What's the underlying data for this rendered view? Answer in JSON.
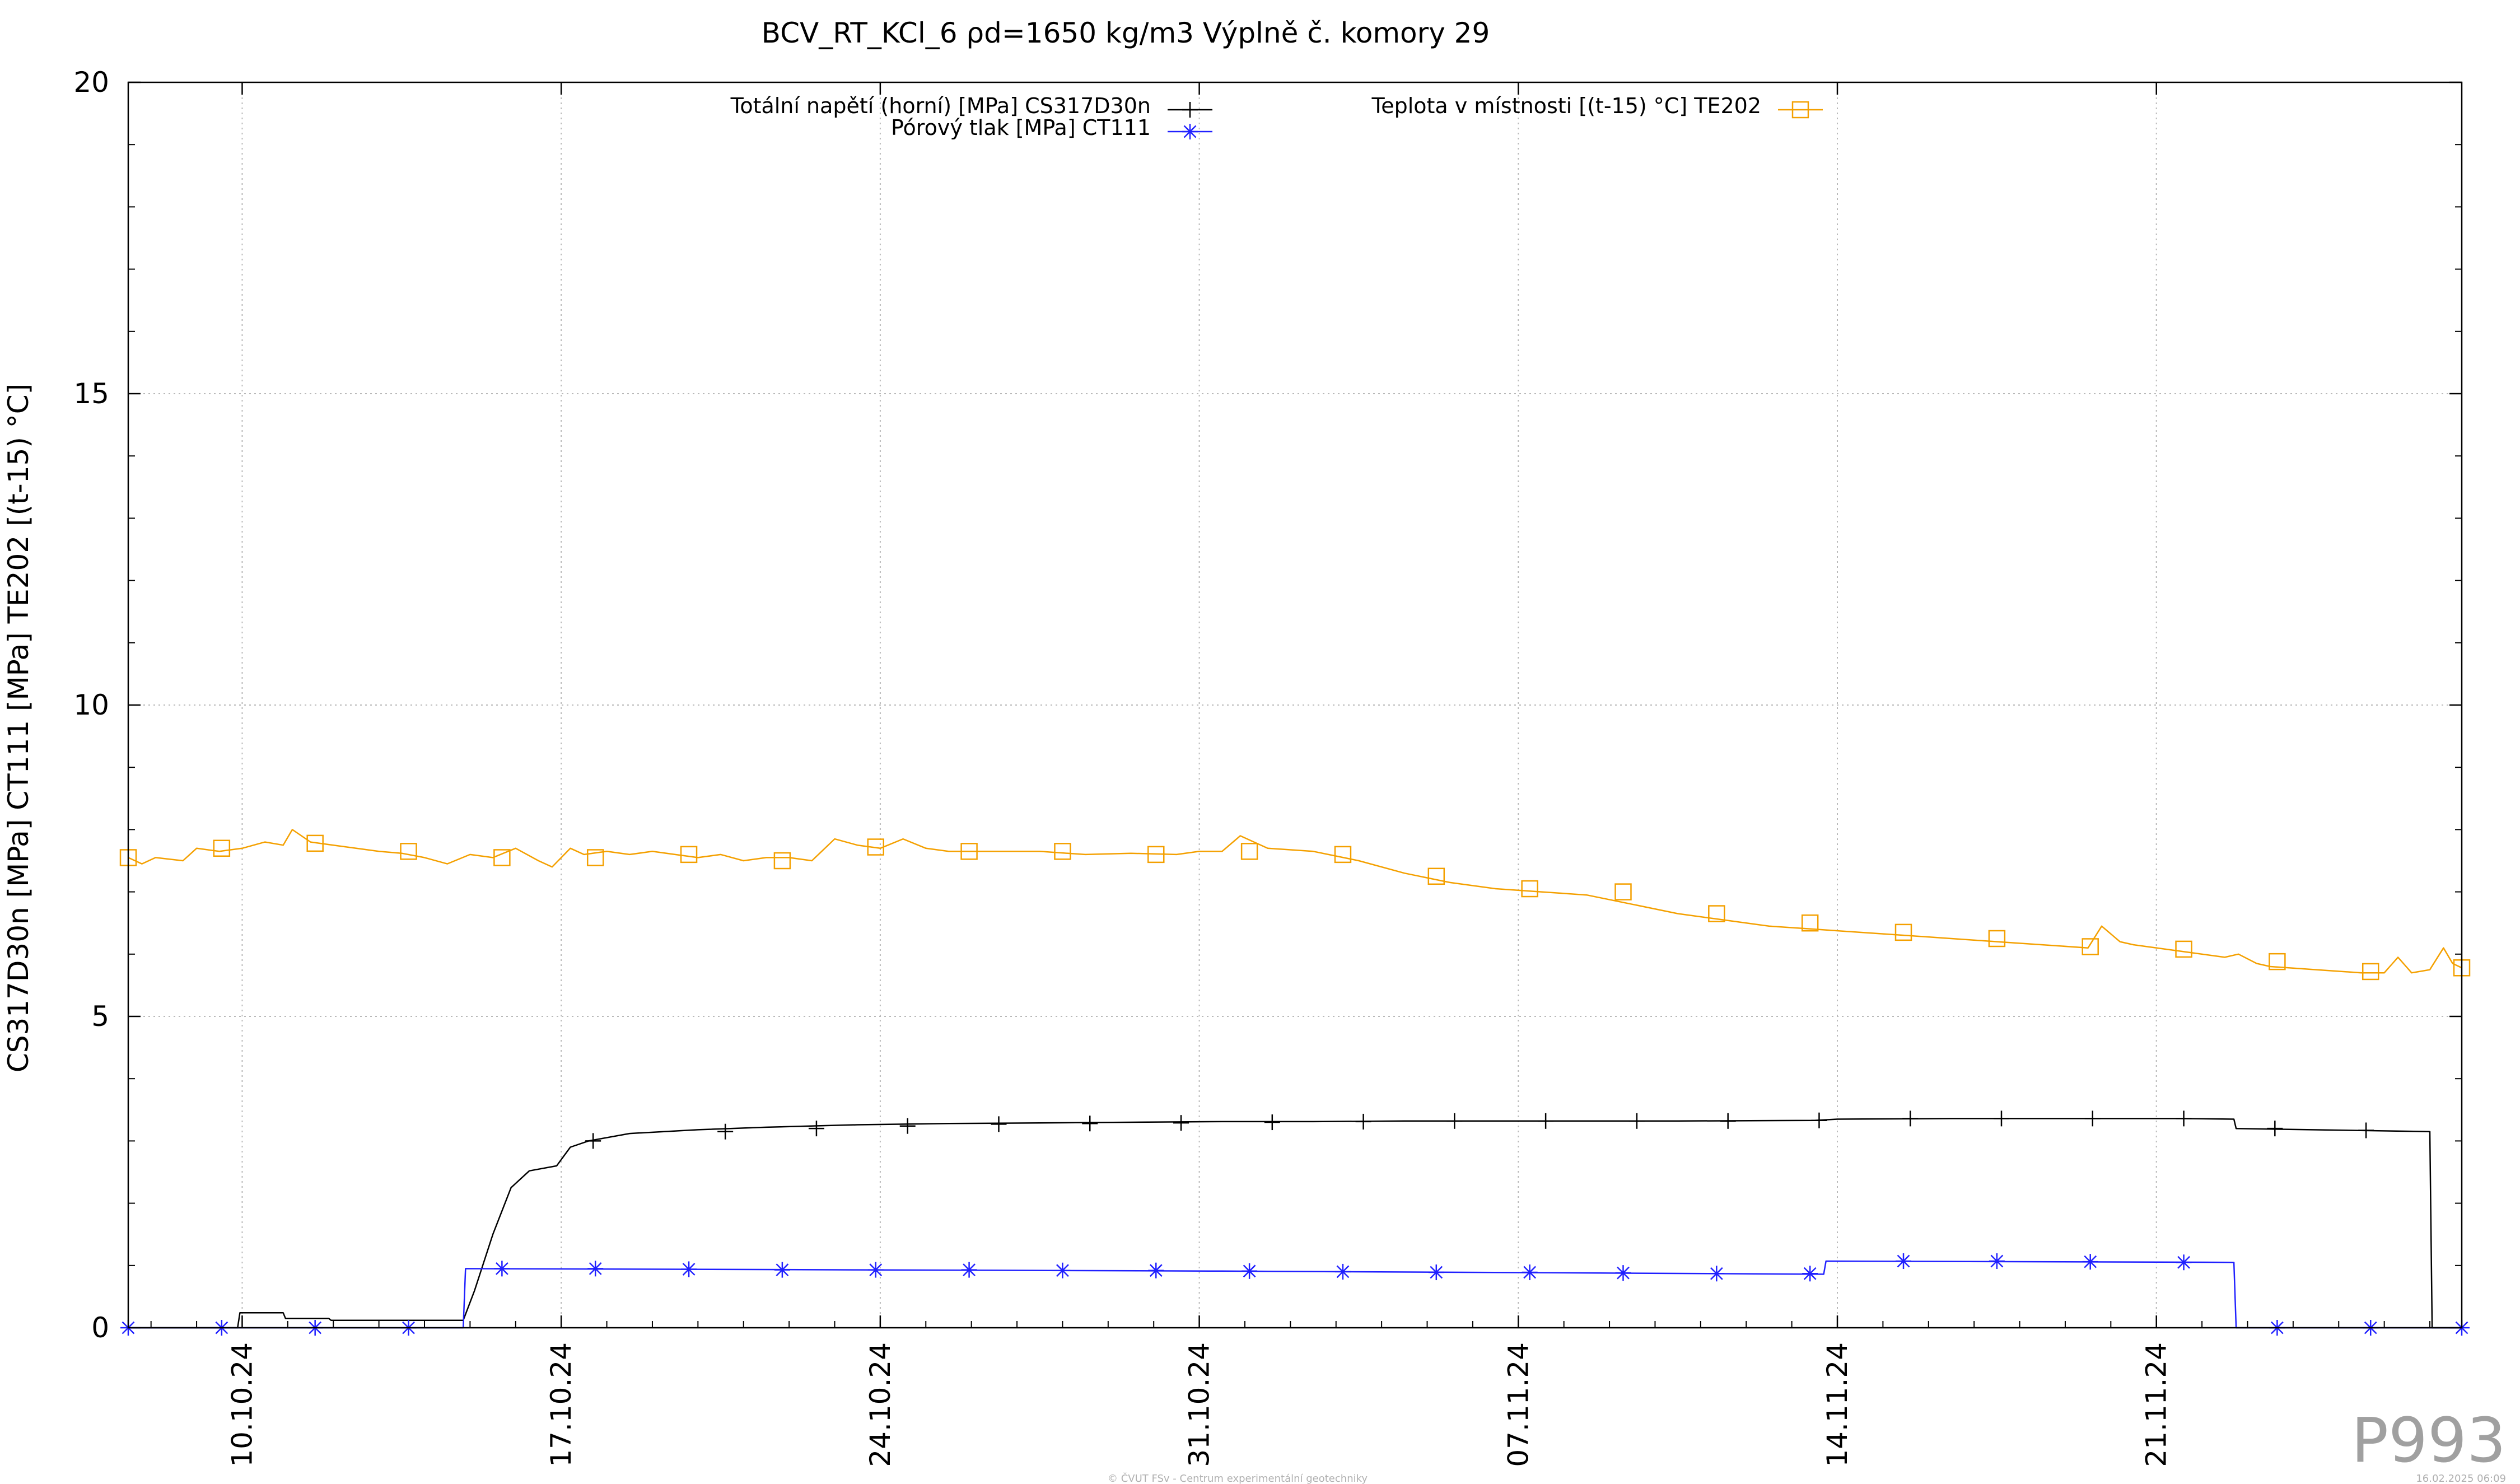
{
  "chart_data": {
    "type": "line",
    "title": "BCV_RT_KCl_6 ρd=1650 kg/m3 Výplně č. komory 29",
    "xlabel": "",
    "ylabel": "CS317D30n [MPa] CT111 [MPa] TE202 [(t-15) °C]",
    "x_ticks": [
      "10.10.24",
      "17.10.24",
      "24.10.24",
      "31.10.24",
      "07.11.24",
      "14.11.24",
      "21.11.24"
    ],
    "x_tick_days": [
      2.5,
      9.5,
      16.5,
      23.5,
      30.5,
      37.5,
      44.5
    ],
    "xlim_days": [
      0,
      51.2
    ],
    "ylim": [
      0,
      20
    ],
    "y_ticks": [
      "0",
      "5",
      "10",
      "15",
      "20"
    ],
    "grid": true,
    "legend_position": "top",
    "series": [
      {
        "name": "Totální napětí (horní) [MPa] CS317D30n",
        "color": "#000000",
        "marker": "plus",
        "points": [
          [
            0,
            0
          ],
          [
            2.4,
            0
          ],
          [
            2.45,
            0.24
          ],
          [
            3.4,
            0.24
          ],
          [
            3.45,
            0.15
          ],
          [
            4.4,
            0.15
          ],
          [
            4.45,
            0.12
          ],
          [
            7.35,
            0.12
          ],
          [
            7.6,
            0.6
          ],
          [
            8.0,
            1.5
          ],
          [
            8.4,
            2.25
          ],
          [
            8.8,
            2.52
          ],
          [
            9.4,
            2.6
          ],
          [
            9.7,
            2.9
          ],
          [
            10.1,
            3.0
          ],
          [
            11,
            3.12
          ],
          [
            12.5,
            3.18
          ],
          [
            14,
            3.22
          ],
          [
            16,
            3.26
          ],
          [
            18,
            3.28
          ],
          [
            20,
            3.29
          ],
          [
            22,
            3.3
          ],
          [
            24,
            3.31
          ],
          [
            26,
            3.31
          ],
          [
            28,
            3.32
          ],
          [
            30,
            3.32
          ],
          [
            32,
            3.32
          ],
          [
            34,
            3.32
          ],
          [
            37,
            3.33
          ],
          [
            37.5,
            3.35
          ],
          [
            40,
            3.36
          ],
          [
            45,
            3.36
          ],
          [
            46.2,
            3.35
          ],
          [
            46.25,
            3.2
          ],
          [
            50.5,
            3.15
          ],
          [
            50.55,
            0
          ],
          [
            51.2,
            0
          ]
        ],
        "marker_days": [
          10.2,
          13.1,
          15.1,
          17.1,
          19.1,
          21.1,
          23.1,
          25.1,
          27.1,
          29.1,
          31.1,
          33.1,
          35.1,
          37.1,
          39.1,
          41.1,
          43.1,
          45.1,
          47.1,
          49.1
        ],
        "marker_values": [
          3.0,
          3.15,
          3.2,
          3.24,
          3.27,
          3.28,
          3.29,
          3.3,
          3.31,
          3.32,
          3.32,
          3.32,
          3.32,
          3.33,
          3.36,
          3.36,
          3.36,
          3.36,
          3.2,
          3.17
        ]
      },
      {
        "name": "Pórový tlak [MPa] CT111",
        "color": "#2020ff",
        "marker": "star",
        "points": [
          [
            0,
            0
          ],
          [
            7.35,
            0
          ],
          [
            7.4,
            0.95
          ],
          [
            16,
            0.93
          ],
          [
            24,
            0.91
          ],
          [
            32,
            0.88
          ],
          [
            37.2,
            0.86
          ],
          [
            37.25,
            1.07
          ],
          [
            46.2,
            1.05
          ],
          [
            46.25,
            0
          ],
          [
            51.2,
            0
          ]
        ],
        "marker_days": [
          0,
          2.05,
          4.1,
          6.15,
          8.2,
          10.25,
          12.3,
          14.35,
          16.4,
          18.45,
          20.5,
          22.55,
          24.6,
          26.65,
          28.7,
          30.75,
          32.8,
          34.85,
          36.9,
          38.95,
          41.0,
          43.05,
          45.1,
          47.15,
          49.2,
          51.2
        ],
        "marker_values": [
          0,
          0,
          0,
          0,
          0.95,
          0.95,
          0.94,
          0.93,
          0.93,
          0.93,
          0.92,
          0.92,
          0.91,
          0.9,
          0.89,
          0.89,
          0.88,
          0.87,
          0.87,
          1.07,
          1.07,
          1.06,
          1.05,
          0,
          0,
          0
        ]
      },
      {
        "name": "Teplota v místnosti [(t-15) °C] TE202",
        "color": "#f4a000",
        "marker": "square",
        "points": [
          [
            0,
            7.55
          ],
          [
            0.3,
            7.45
          ],
          [
            0.6,
            7.55
          ],
          [
            1.2,
            7.5
          ],
          [
            1.5,
            7.7
          ],
          [
            2.0,
            7.65
          ],
          [
            2.5,
            7.7
          ],
          [
            3.0,
            7.8
          ],
          [
            3.4,
            7.75
          ],
          [
            3.6,
            8.0
          ],
          [
            4.0,
            7.8
          ],
          [
            4.5,
            7.75
          ],
          [
            5.0,
            7.7
          ],
          [
            5.5,
            7.65
          ],
          [
            6.0,
            7.62
          ],
          [
            6.5,
            7.55
          ],
          [
            7.0,
            7.45
          ],
          [
            7.5,
            7.6
          ],
          [
            8.0,
            7.55
          ],
          [
            8.5,
            7.7
          ],
          [
            9.0,
            7.5
          ],
          [
            9.3,
            7.4
          ],
          [
            9.7,
            7.7
          ],
          [
            10.0,
            7.6
          ],
          [
            10.5,
            7.65
          ],
          [
            11.0,
            7.6
          ],
          [
            11.5,
            7.65
          ],
          [
            12.0,
            7.6
          ],
          [
            12.5,
            7.55
          ],
          [
            13.0,
            7.6
          ],
          [
            13.5,
            7.5
          ],
          [
            14.0,
            7.55
          ],
          [
            14.5,
            7.55
          ],
          [
            15.0,
            7.5
          ],
          [
            15.5,
            7.85
          ],
          [
            16.0,
            7.75
          ],
          [
            16.5,
            7.7
          ],
          [
            17.0,
            7.85
          ],
          [
            17.5,
            7.7
          ],
          [
            18.0,
            7.65
          ],
          [
            19.0,
            7.65
          ],
          [
            20.0,
            7.65
          ],
          [
            21.0,
            7.6
          ],
          [
            22.0,
            7.62
          ],
          [
            23.0,
            7.6
          ],
          [
            23.5,
            7.65
          ],
          [
            24.0,
            7.65
          ],
          [
            24.4,
            7.9
          ],
          [
            25.0,
            7.7
          ],
          [
            26.0,
            7.65
          ],
          [
            27.0,
            7.5
          ],
          [
            28.0,
            7.3
          ],
          [
            29.0,
            7.15
          ],
          [
            30.0,
            7.05
          ],
          [
            31.0,
            7.0
          ],
          [
            32.0,
            6.95
          ],
          [
            33.0,
            6.8
          ],
          [
            34.0,
            6.65
          ],
          [
            35.0,
            6.55
          ],
          [
            36.0,
            6.45
          ],
          [
            37.0,
            6.4
          ],
          [
            38.0,
            6.35
          ],
          [
            39.0,
            6.3
          ],
          [
            40.0,
            6.25
          ],
          [
            41.0,
            6.2
          ],
          [
            42.0,
            6.15
          ],
          [
            43.0,
            6.1
          ],
          [
            43.3,
            6.45
          ],
          [
            43.7,
            6.2
          ],
          [
            44.0,
            6.15
          ],
          [
            45.0,
            6.05
          ],
          [
            46.0,
            5.95
          ],
          [
            46.3,
            6.0
          ],
          [
            46.7,
            5.85
          ],
          [
            47.0,
            5.8
          ],
          [
            48.0,
            5.75
          ],
          [
            49.0,
            5.7
          ],
          [
            49.5,
            5.7
          ],
          [
            49.8,
            5.95
          ],
          [
            50.1,
            5.7
          ],
          [
            50.5,
            5.75
          ],
          [
            50.8,
            6.1
          ],
          [
            51.0,
            5.85
          ],
          [
            51.2,
            5.78
          ]
        ],
        "marker_days": [
          0,
          2.05,
          4.1,
          6.15,
          8.2,
          10.25,
          12.3,
          14.35,
          16.4,
          18.45,
          20.5,
          22.55,
          24.6,
          26.65,
          28.7,
          30.75,
          32.8,
          34.85,
          36.9,
          38.95,
          41.0,
          43.05,
          45.1,
          47.15,
          49.2,
          51.2
        ],
        "marker_values": [
          7.55,
          7.7,
          7.78,
          7.65,
          7.55,
          7.55,
          7.6,
          7.5,
          7.72,
          7.65,
          7.65,
          7.6,
          7.65,
          7.6,
          7.25,
          7.05,
          7.0,
          6.65,
          6.5,
          6.35,
          6.25,
          6.12,
          6.08,
          5.88,
          5.72,
          5.78
        ]
      }
    ]
  },
  "footer": {
    "copyright": "© ČVUT FSv - Centrum experimentální geotechniky",
    "timestamp": "16.02.2025 06:09",
    "watermark": "P993"
  }
}
